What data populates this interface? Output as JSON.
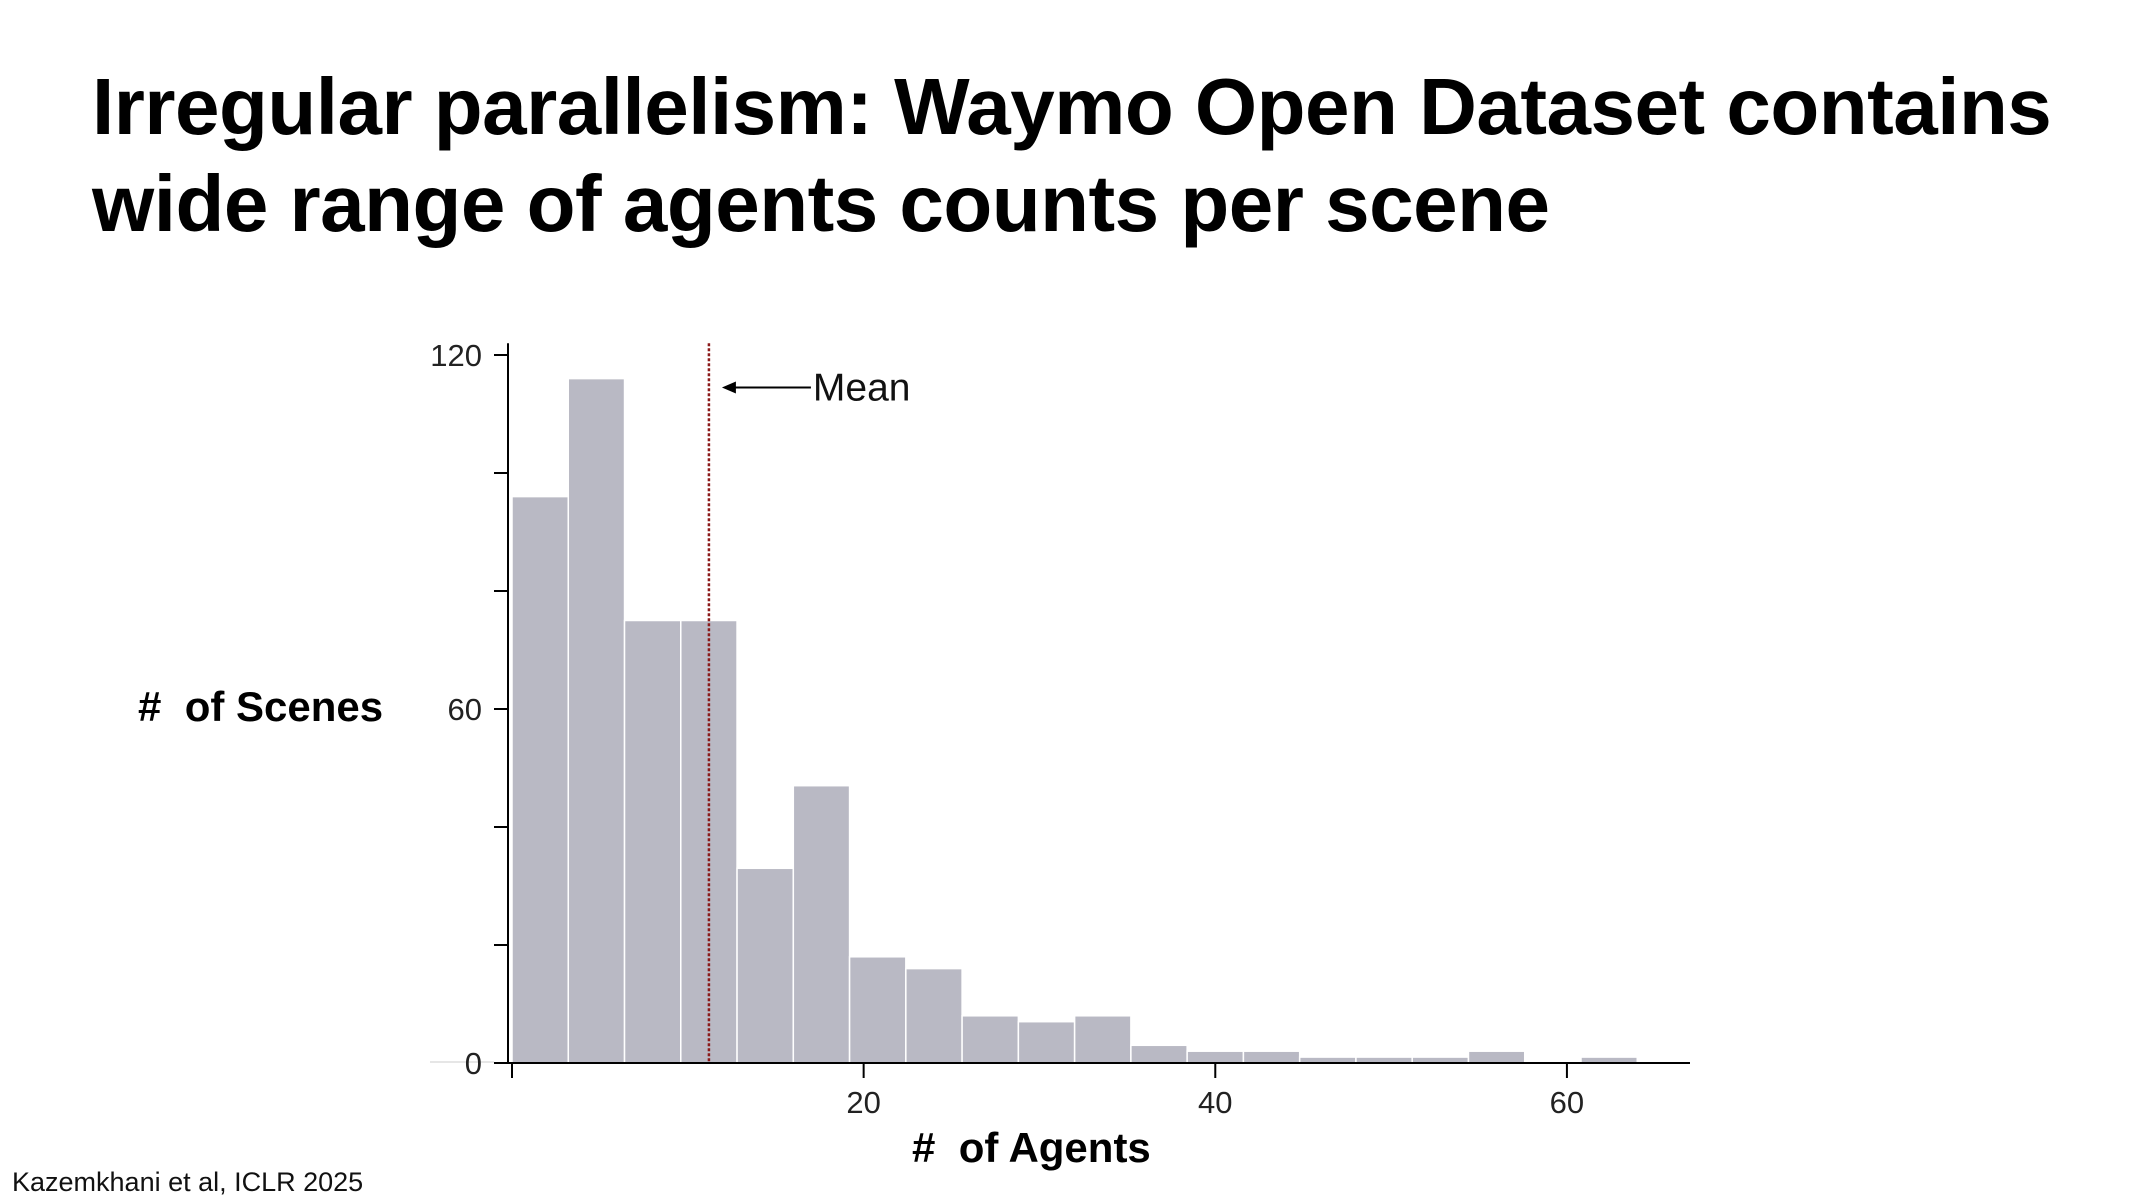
{
  "title_lines": [
    "Irregular parallelism: Waymo Open Dataset contains",
    "wide range of agents counts per scene"
  ],
  "citation": "Kazemkhani et al, ICLR 2025",
  "colors": {
    "bar_fill": "#b9b9c4",
    "bar_edge": "#ffffff",
    "mean_line": "#8b1a1a",
    "axis": "#000000"
  },
  "chart_data": {
    "type": "bar",
    "subtype": "histogram",
    "xlabel": "#  of Agents",
    "ylabel": "#  of Scenes",
    "xlim": [
      0,
      67
    ],
    "ylim": [
      0,
      120
    ],
    "x_ticks": [
      20,
      40,
      60
    ],
    "y_ticks_labeled": [
      0,
      60,
      120
    ],
    "y_ticks_minor": [
      20,
      40,
      80,
      100
    ],
    "grid": false,
    "bin_width": 3.2,
    "bin_edges": [
      0,
      3.2,
      6.4,
      9.6,
      12.8,
      16,
      19.2,
      22.4,
      25.6,
      28.8,
      32,
      35.2,
      38.4,
      41.6,
      44.8,
      48,
      51.2,
      54.4,
      57.6,
      60.8,
      64
    ],
    "values": [
      96,
      116,
      75,
      75,
      33,
      47,
      18,
      16,
      8,
      7,
      8,
      3,
      2,
      2,
      1,
      1,
      1,
      2,
      0,
      1
    ],
    "mean": 11.2,
    "annotation": {
      "text": "Mean",
      "x": 11.2,
      "y": 114.5
    }
  }
}
